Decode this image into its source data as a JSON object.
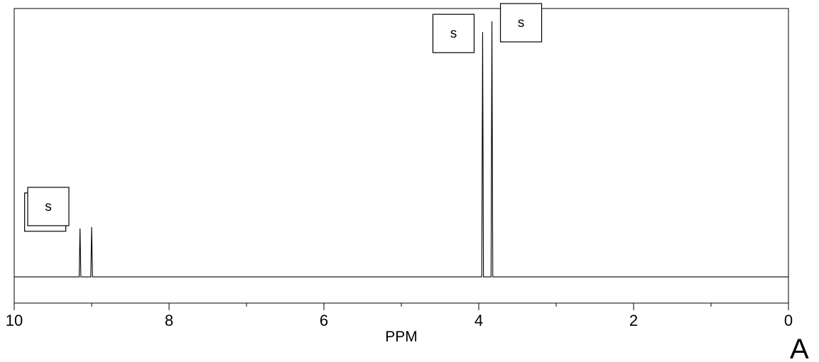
{
  "chart_data": {
    "type": "line",
    "xlabel": "PPM",
    "xlim": [
      10,
      0
    ],
    "x_ticks": [
      "10",
      "8",
      "6",
      "4",
      "2",
      "0"
    ],
    "x_tick_values": [
      10,
      8,
      6,
      4,
      2,
      0
    ],
    "x_minor_ticks": [
      9,
      7,
      5,
      3,
      1
    ],
    "y_range": [
      0,
      1
    ],
    "baseline": 0.05,
    "grid": false,
    "peaks": [
      {
        "shift": 9.15,
        "height": 0.23,
        "multiplicity": "s"
      },
      {
        "shift": 9.0,
        "height": 0.235,
        "multiplicity": "s"
      },
      {
        "shift": 3.95,
        "height": 0.96,
        "multiplicity": "s"
      },
      {
        "shift": 3.83,
        "height": 1.0,
        "multiplicity": "s"
      }
    ],
    "panel_label": "A"
  }
}
